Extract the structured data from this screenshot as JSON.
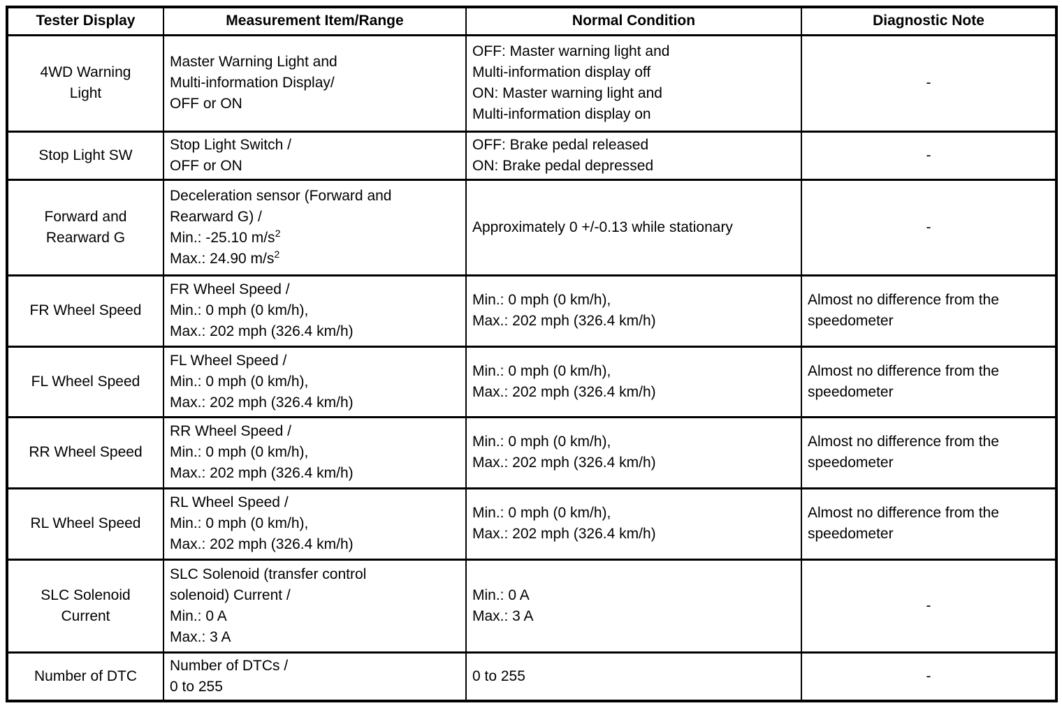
{
  "page": {
    "background": "#ffffff",
    "text_color": "#000000",
    "border_color": "#000000"
  },
  "table": {
    "headers": [
      "Tester Display",
      "Measurement Item/Range",
      "Normal Condition",
      "Diagnostic Note"
    ],
    "rows": [
      {
        "tester_display": "4WD Warning\nLight",
        "measurement_item_range": "Master Warning Light and\nMulti-information Display/\nOFF or ON",
        "normal_condition": "OFF: Master warning light and\nMulti-information display off\nON: Master warning light and\nMulti-information display on",
        "diagnostic_note": "-"
      },
      {
        "tester_display": "Stop Light SW",
        "measurement_item_range": "Stop Light Switch /\nOFF or ON",
        "normal_condition": "OFF: Brake pedal released\nON: Brake pedal depressed",
        "diagnostic_note": "-"
      },
      {
        "tester_display": "Forward and\nRearward G",
        "measurement_item_range": "Deceleration sensor (Forward and\nRearward G) /\nMin.: -25.10 m/s²\nMax.: 24.90 m/s²",
        "normal_condition": "Approximately 0 +/-0.13 while stationary",
        "diagnostic_note": "-"
      },
      {
        "tester_display": "FR Wheel Speed",
        "measurement_item_range": "FR Wheel Speed /\nMin.: 0 mph (0 km/h),\nMax.: 202 mph (326.4 km/h)",
        "normal_condition": "Min.: 0 mph (0 km/h),\nMax.: 202 mph (326.4 km/h)",
        "diagnostic_note": "Almost no difference from the\nspeedometer"
      },
      {
        "tester_display": "FL Wheel Speed",
        "measurement_item_range": "FL Wheel Speed /\nMin.: 0 mph (0 km/h),\nMax.: 202 mph (326.4 km/h)",
        "normal_condition": "Min.: 0 mph (0 km/h),\nMax.: 202 mph (326.4 km/h)",
        "diagnostic_note": "Almost no difference from the\nspeedometer"
      },
      {
        "tester_display": "RR Wheel Speed",
        "measurement_item_range": "RR Wheel Speed /\nMin.: 0 mph (0 km/h),\nMax.: 202 mph (326.4 km/h)",
        "normal_condition": "Min.: 0 mph (0 km/h),\nMax.: 202 mph (326.4 km/h)",
        "diagnostic_note": "Almost no difference from the\nspeedometer"
      },
      {
        "tester_display": "RL Wheel Speed",
        "measurement_item_range": "RL Wheel Speed /\nMin.: 0 mph (0 km/h),\nMax.: 202 mph (326.4 km/h)",
        "normal_condition": "Min.: 0 mph (0 km/h),\nMax.: 202 mph (326.4 km/h)",
        "diagnostic_note": "Almost no difference from the\nspeedometer"
      },
      {
        "tester_display": "SLC Solenoid\nCurrent",
        "measurement_item_range": "SLC Solenoid (transfer control\nsolenoid) Current /\nMin.: 0 A\nMax.: 3 A",
        "normal_condition": "Min.: 0 A\nMax.: 3 A",
        "diagnostic_note": "-"
      },
      {
        "tester_display": "Number of DTC",
        "measurement_item_range": "Number of DTCs /\n0 to 255",
        "normal_condition": "0 to 255",
        "diagnostic_note": "-"
      }
    ]
  }
}
